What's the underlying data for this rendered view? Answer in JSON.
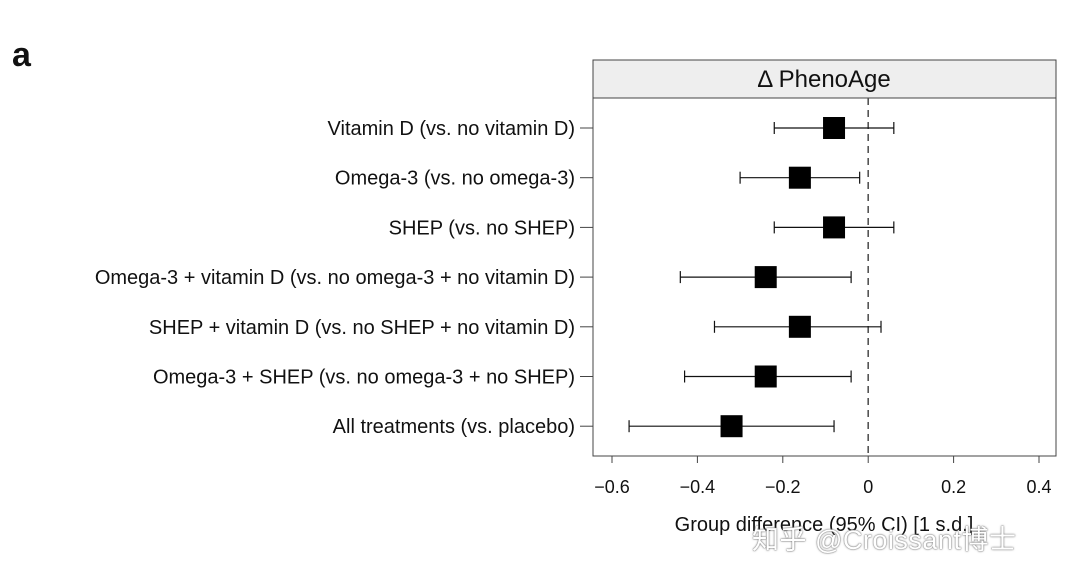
{
  "panel_label": "a",
  "watermark": "知乎 @Croissant博士",
  "colors": {
    "marker": "#000000",
    "header_fill": "#eeeeee",
    "axis": "#444444",
    "refline": "#555555"
  },
  "chart_data": {
    "type": "forest",
    "title": "Δ PhenoAge",
    "xlabel": "Group difference (95% CI) [1 s.d.]",
    "xlim": [
      -0.65,
      0.45
    ],
    "xticks": [
      -0.6,
      -0.4,
      -0.2,
      0,
      0.2,
      0.4
    ],
    "xtick_labels": [
      "−0.6",
      "−0.4",
      "−0.2",
      "0",
      "0.2",
      "0.4"
    ],
    "reference_line": 0,
    "rows": [
      {
        "label": "Vitamin D (vs. no vitamin D)",
        "estimate": -0.08,
        "ci_low": -0.22,
        "ci_high": 0.06
      },
      {
        "label": "Omega-3 (vs. no omega-3)",
        "estimate": -0.16,
        "ci_low": -0.3,
        "ci_high": -0.02
      },
      {
        "label": "SHEP (vs. no SHEP)",
        "estimate": -0.08,
        "ci_low": -0.22,
        "ci_high": 0.06
      },
      {
        "label": "Omega-3 + vitamin D (vs. no omega-3 + no vitamin D)",
        "estimate": -0.24,
        "ci_low": -0.44,
        "ci_high": -0.04
      },
      {
        "label": "SHEP + vitamin D (vs. no SHEP + no vitamin D)",
        "estimate": -0.16,
        "ci_low": -0.36,
        "ci_high": 0.03
      },
      {
        "label": "Omega-3 + SHEP (vs. no omega-3 + no SHEP)",
        "estimate": -0.24,
        "ci_low": -0.43,
        "ci_high": -0.04
      },
      {
        "label": "All treatments (vs. placebo)",
        "estimate": -0.32,
        "ci_low": -0.56,
        "ci_high": -0.08
      }
    ]
  }
}
